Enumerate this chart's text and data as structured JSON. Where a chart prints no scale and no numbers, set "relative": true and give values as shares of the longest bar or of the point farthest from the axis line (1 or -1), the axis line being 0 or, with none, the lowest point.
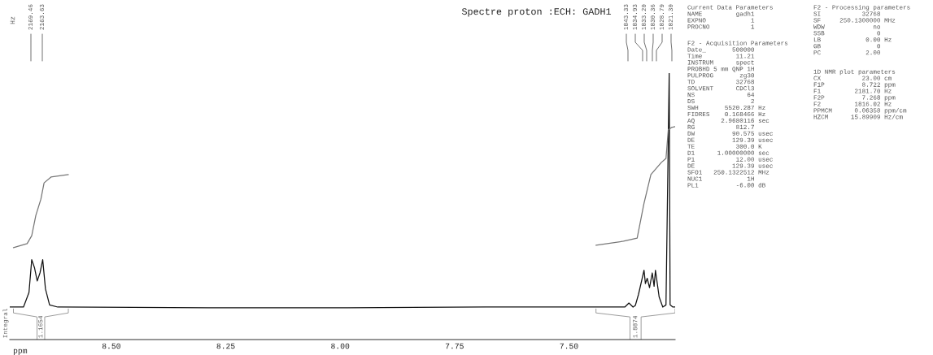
{
  "chart_data": {
    "type": "line",
    "title": "Spectre proton :ECH: GADH1",
    "xlabel": "ppm",
    "relative": true,
    "xlim": [
      8.722,
      7.268
    ],
    "xticks": [
      {
        "value": 8.5,
        "label": "8.50"
      },
      8.25,
      {
        "value": 8.0,
        "label": "8.00"
      },
      7.75,
      {
        "value": 7.5,
        "label": "7.50"
      }
    ],
    "series": [
      {
        "color": "#111111",
        "x": [
          8.722,
          8.692,
          8.68,
          8.674,
          8.668,
          8.662,
          8.656,
          8.65,
          8.644,
          8.635,
          8.617,
          8.285,
          7.984,
          7.682,
          7.471,
          7.411,
          7.378,
          7.369,
          7.36,
          7.355,
          7.348,
          7.336,
          7.333,
          7.329,
          7.324,
          7.318,
          7.314,
          7.311,
          7.303,
          7.295,
          7.288,
          7.281,
          7.279,
          7.273,
          7.268
        ],
        "values": [
          0.122,
          0.122,
          0.177,
          0.3,
          0.27,
          0.22,
          0.25,
          0.3,
          0.19,
          0.13,
          0.122,
          0.119,
          0.119,
          0.122,
          0.122,
          0.122,
          0.122,
          0.137,
          0.122,
          0.128,
          0.17,
          0.26,
          0.21,
          0.23,
          0.195,
          0.25,
          0.2,
          0.26,
          0.16,
          0.122,
          0.13,
          1.0,
          0.13,
          0.122,
          0.122
        ]
      },
      {
        "color": "#777777",
        "x": [
          8.714,
          8.684,
          8.674,
          8.665,
          8.654,
          8.647,
          8.632,
          8.594
        ],
        "values": [
          0.345,
          0.36,
          0.39,
          0.466,
          0.527,
          0.588,
          0.61,
          0.619
        ]
      },
      {
        "color": "#777777",
        "x": [
          7.441,
          7.381,
          7.351,
          7.336,
          7.321,
          7.298,
          7.288,
          7.283,
          7.276,
          7.268
        ],
        "values": [
          0.354,
          0.369,
          0.381,
          0.512,
          0.619,
          0.665,
          0.68,
          0.787,
          0.796,
          0.799
        ]
      }
    ],
    "annotations": [
      "Hz",
      "Integral",
      "Current Data Parameters\nNAME         gadh1\nEXPNO            1\nPROCNO           1",
      "F2 - Acquisition Parameters\nDate_       500000\nTime         11.21\nINSTRUM      spect\nPROBHD 5 mm QNP 1H\nPULPROG       zg30\nTD           32768\nSOLVENT      CDCl3\nNS              64\nDS               2\nSWH       5520.287 Hz\nFIDRES    0.168466 Hz\nAQ       2.9680116 sec\nRG           812.7\nDW          90.575 usec\nDE          129.39 usec\nTE           300.0 K\nD1      1.00000000 sec\nP1           12.00 usec\nDE          129.39 usec\nSFO1   250.1322512 MHz\nNUC1            1H\nPL1          -6.00 dB",
      "F2 - Processing parameters\nSI           32768\nSF     250.1300000 MHz\nWDW             no\nSSB              0\nLB            0.00 Hz\nGB               0\nPC            2.00",
      "1D NMR plot parameters\nCX           23.00 cm\nF1P          8.722 ppm\nF1         2181.70 Hz\nF2P          7.268 ppm\nF2         1816.02 Hz\nPPMCM      0.06358 ppm/cm\nHZCM      15.89909 Hz/cm",
      "1.1654",
      "1.8874",
      "2169.46",
      "2163.63",
      "1843.33",
      "1834.93",
      "1833.20",
      "1830.36",
      "1828.79",
      "1821.30"
    ]
  }
}
